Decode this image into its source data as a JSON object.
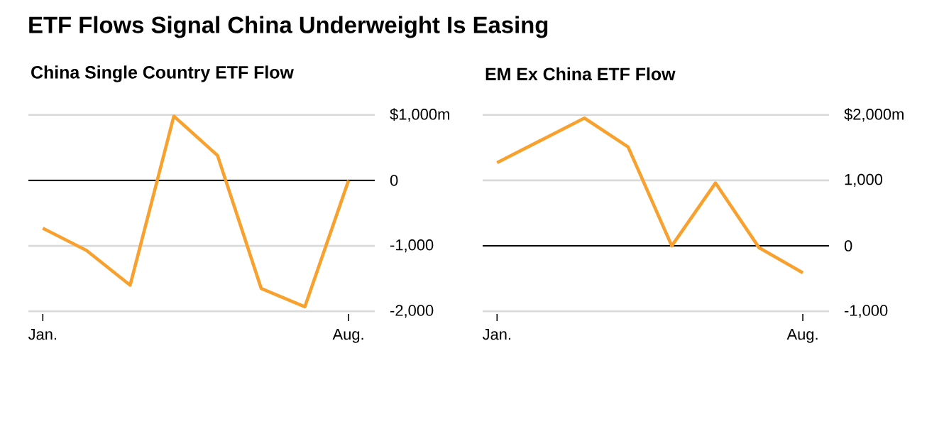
{
  "chart_data": [
    {
      "type": "line",
      "title": "ETF Flows Signal China Underweight Is Easing",
      "subtitle": "China Single Country ETF Flow",
      "categories": [
        "Jan.",
        null,
        null,
        null,
        null,
        null,
        null,
        "Aug."
      ],
      "series": [
        {
          "color": "#f9a12e",
          "values": [
            -730,
            -1070,
            -1600,
            980,
            380,
            -1650,
            -1930,
            0
          ]
        }
      ],
      "ylim": [
        -2040,
        1040
      ],
      "yticks": [
        {
          "value": -2000,
          "label": "-2,000"
        },
        {
          "value": -1000,
          "label": "-1,000"
        },
        0,
        {
          "value": 1000,
          "label": "$1,000m"
        }
      ],
      "ref_lines": [
        {
          "axis": "y",
          "value": 0,
          "color": "#000000"
        }
      ],
      "grid": "y",
      "marker": "none",
      "line_style": "solid"
    },
    {
      "type": "line",
      "subtitle": "EM Ex China ETF Flow",
      "categories": [
        "Jan.",
        null,
        null,
        null,
        null,
        null,
        null,
        "Aug."
      ],
      "series": [
        {
          "color": "#f9a12e",
          "values": [
            1270,
            1610,
            1950,
            1510,
            0,
            960,
            -30,
            -410
          ]
        }
      ],
      "ylim": [
        -1040,
        2040
      ],
      "yticks": [
        {
          "value": -1000,
          "label": "-1,000"
        },
        0,
        {
          "value": 1000,
          "label": "1,000"
        },
        {
          "value": 2000,
          "label": "$2,000m"
        }
      ],
      "ref_lines": [
        {
          "axis": "y",
          "value": 0,
          "color": "#000000"
        }
      ],
      "grid": "y",
      "marker": "none",
      "line_style": "solid"
    }
  ]
}
